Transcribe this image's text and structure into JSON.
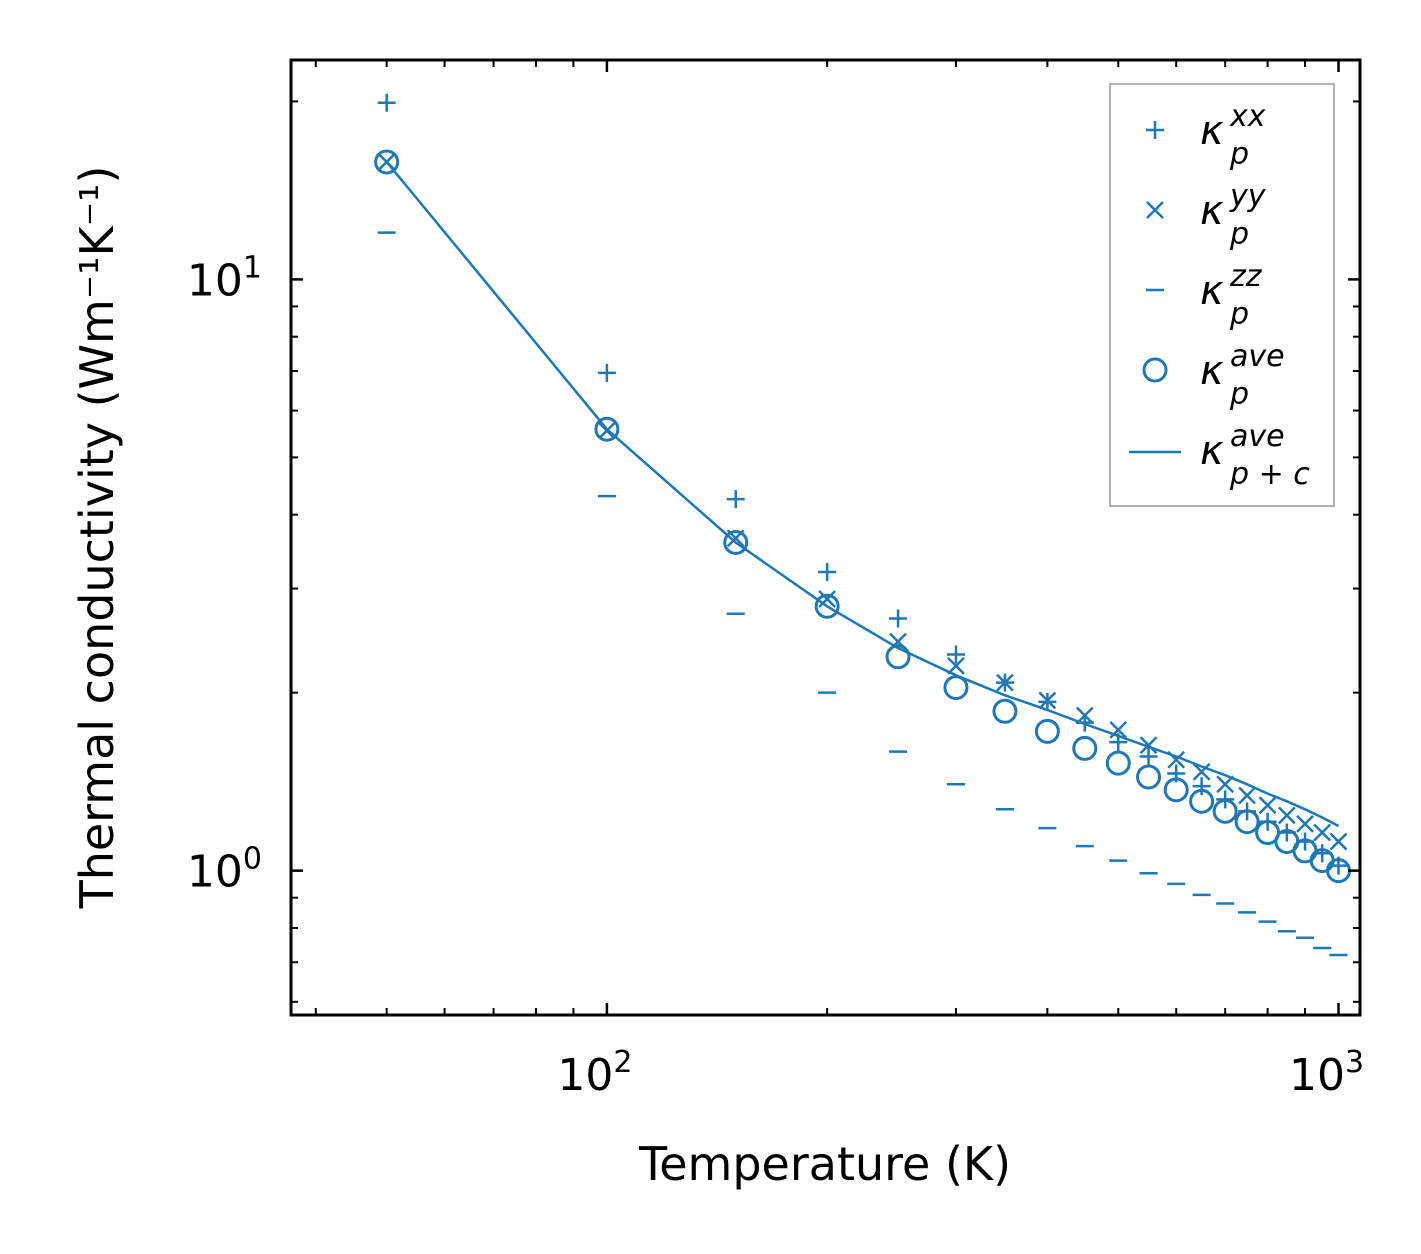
{
  "chart_data": {
    "type": "scatter",
    "xscale": "log",
    "yscale": "log",
    "xlabel": "Temperature (K)",
    "ylabel": "Thermal conductivity (Wm⁻¹K⁻¹)",
    "xlim": [
      37,
      1070
    ],
    "ylim": [
      0.57,
      23.5
    ],
    "xticks": [
      {
        "base": "10",
        "exp": "2",
        "value": 100
      },
      {
        "base": "10",
        "exp": "3",
        "value": 1000
      }
    ],
    "yticks": [
      {
        "base": "10",
        "exp": "0",
        "value": 1
      },
      {
        "base": "10",
        "exp": "1",
        "value": 10
      }
    ],
    "legend_position": "top-right",
    "series": [
      {
        "name": "kxx",
        "label": "κ",
        "sup": "xx",
        "sub": "p",
        "marker": "plus",
        "points": [
          [
            50,
            19.9
          ],
          [
            100,
            6.95
          ],
          [
            150,
            4.25
          ],
          [
            200,
            3.2
          ],
          [
            250,
            2.67
          ],
          [
            300,
            2.32
          ],
          [
            350,
            2.08
          ],
          [
            400,
            1.93
          ],
          [
            450,
            1.78
          ],
          [
            500,
            1.65
          ],
          [
            550,
            1.56
          ],
          [
            600,
            1.46
          ],
          [
            650,
            1.39
          ],
          [
            700,
            1.32
          ],
          [
            750,
            1.26
          ],
          [
            800,
            1.21
          ],
          [
            850,
            1.16
          ],
          [
            900,
            1.12
          ],
          [
            950,
            1.07
          ],
          [
            1000,
            1.02
          ]
        ]
      },
      {
        "name": "kyy",
        "label": "κ",
        "sup": "yy",
        "sub": "p",
        "marker": "x",
        "points": [
          [
            50,
            15.8
          ],
          [
            100,
            5.55
          ],
          [
            150,
            3.65
          ],
          [
            200,
            2.88
          ],
          [
            250,
            2.44
          ],
          [
            300,
            2.22
          ],
          [
            350,
            2.08
          ],
          [
            400,
            1.94
          ],
          [
            450,
            1.83
          ],
          [
            500,
            1.73
          ],
          [
            550,
            1.63
          ],
          [
            600,
            1.54
          ],
          [
            650,
            1.47
          ],
          [
            700,
            1.4
          ],
          [
            750,
            1.34
          ],
          [
            800,
            1.29
          ],
          [
            850,
            1.24
          ],
          [
            900,
            1.2
          ],
          [
            950,
            1.16
          ],
          [
            1000,
            1.12
          ]
        ]
      },
      {
        "name": "kzz",
        "label": "κ",
        "sup": "zz",
        "sub": "p",
        "marker": "hline",
        "points": [
          [
            50,
            12.0
          ],
          [
            100,
            4.3
          ],
          [
            150,
            2.72
          ],
          [
            200,
            2.0
          ],
          [
            250,
            1.59
          ],
          [
            300,
            1.4
          ],
          [
            350,
            1.27
          ],
          [
            400,
            1.18
          ],
          [
            450,
            1.1
          ],
          [
            500,
            1.04
          ],
          [
            550,
            0.99
          ],
          [
            600,
            0.95
          ],
          [
            650,
            0.91
          ],
          [
            700,
            0.88
          ],
          [
            750,
            0.85
          ],
          [
            800,
            0.82
          ],
          [
            850,
            0.79
          ],
          [
            900,
            0.77
          ],
          [
            950,
            0.74
          ],
          [
            1000,
            0.72
          ]
        ]
      },
      {
        "name": "kave",
        "label": "κ",
        "sup": "ave",
        "sub": "p",
        "marker": "circle",
        "points": [
          [
            50,
            15.8
          ],
          [
            100,
            5.58
          ],
          [
            150,
            3.59
          ],
          [
            200,
            2.8
          ],
          [
            250,
            2.3
          ],
          [
            300,
            2.04
          ],
          [
            350,
            1.86
          ],
          [
            400,
            1.72
          ],
          [
            450,
            1.61
          ],
          [
            500,
            1.52
          ],
          [
            550,
            1.44
          ],
          [
            600,
            1.37
          ],
          [
            650,
            1.31
          ],
          [
            700,
            1.26
          ],
          [
            750,
            1.21
          ],
          [
            800,
            1.16
          ],
          [
            850,
            1.12
          ],
          [
            900,
            1.08
          ],
          [
            950,
            1.04
          ],
          [
            1000,
            1.0
          ]
        ]
      },
      {
        "name": "kave_pc",
        "label": "κ",
        "sup": "ave",
        "sub": "p + c",
        "marker": "line",
        "points": [
          [
            50,
            15.8
          ],
          [
            100,
            5.58
          ],
          [
            150,
            3.59
          ],
          [
            200,
            2.8
          ],
          [
            250,
            2.38
          ],
          [
            300,
            2.14
          ],
          [
            350,
            1.98
          ],
          [
            400,
            1.87
          ],
          [
            450,
            1.77
          ],
          [
            500,
            1.69
          ],
          [
            550,
            1.62
          ],
          [
            600,
            1.56
          ],
          [
            650,
            1.5
          ],
          [
            700,
            1.45
          ],
          [
            750,
            1.4
          ],
          [
            800,
            1.35
          ],
          [
            850,
            1.31
          ],
          [
            900,
            1.27
          ],
          [
            950,
            1.23
          ],
          [
            1000,
            1.19
          ]
        ]
      }
    ]
  },
  "colors": {
    "series": "#1f77b4",
    "axes": "#000000",
    "legend_border": "#999999"
  }
}
